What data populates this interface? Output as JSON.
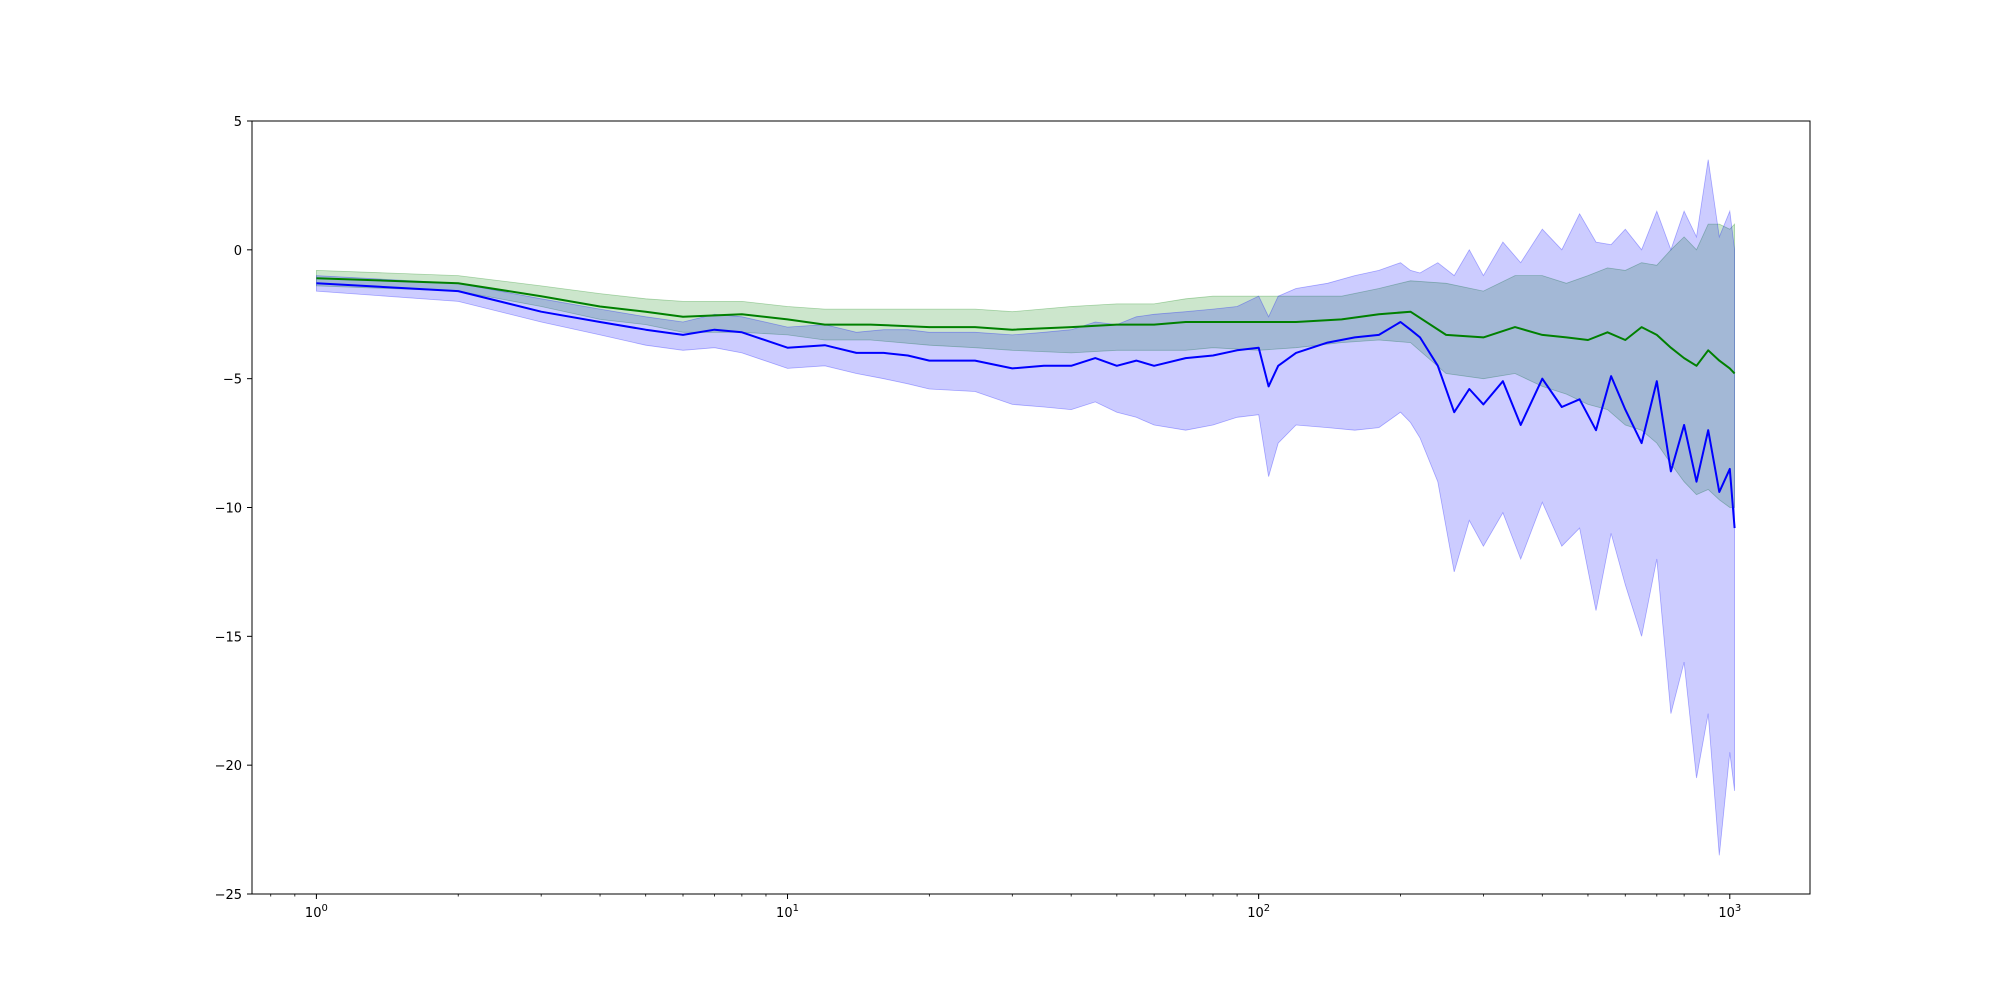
{
  "chart_data": {
    "type": "line",
    "title": "",
    "xlabel": "",
    "ylabel": "",
    "xscale": "log",
    "xlim": [
      0.73,
      1480
    ],
    "ylim": [
      -25,
      5
    ],
    "grid": false,
    "legend": null,
    "x_ticks": [
      {
        "value": 1,
        "base": "10",
        "exp": "0"
      },
      {
        "value": 10,
        "base": "10",
        "exp": "1"
      },
      {
        "value": 100,
        "base": "10",
        "exp": "2"
      },
      {
        "value": 1000,
        "base": "10",
        "exp": "3"
      }
    ],
    "y_ticks": [
      5,
      0,
      -5,
      -10,
      -15,
      -20,
      -25
    ],
    "y_tick_labels": [
      "5",
      "0",
      "−5",
      "−10",
      "−15",
      "−20",
      "−25"
    ],
    "colors": {
      "green_line": "#008000",
      "green_band": "#008000",
      "blue_line": "#0000ff",
      "blue_band": "#0000ff"
    },
    "series": [
      {
        "color": "green",
        "x": [
          1,
          2,
          3,
          4,
          5,
          6,
          8,
          10,
          12,
          15,
          20,
          25,
          30,
          40,
          50,
          60,
          70,
          80,
          100,
          120,
          150,
          180,
          210,
          250,
          300,
          350,
          400,
          450,
          500,
          550,
          600,
          650,
          700,
          750,
          800,
          850,
          900,
          950,
          1000,
          1024
        ],
        "y": [
          -1.1,
          -1.3,
          -1.8,
          -2.2,
          -2.4,
          -2.6,
          -2.5,
          -2.7,
          -2.9,
          -2.9,
          -3.0,
          -3.0,
          -3.1,
          -3.0,
          -2.9,
          -2.9,
          -2.8,
          -2.8,
          -2.8,
          -2.8,
          -2.7,
          -2.5,
          -2.4,
          -3.3,
          -3.4,
          -3.0,
          -3.3,
          -3.4,
          -3.5,
          -3.2,
          -3.5,
          -3.0,
          -3.3,
          -3.8,
          -4.2,
          -4.5,
          -3.9,
          -4.3,
          -4.6,
          -4.8
        ],
        "lower": [
          -1.4,
          -1.6,
          -2.2,
          -2.7,
          -2.9,
          -3.2,
          -3.2,
          -3.3,
          -3.5,
          -3.5,
          -3.7,
          -3.8,
          -3.9,
          -4.0,
          -3.9,
          -3.9,
          -3.9,
          -3.8,
          -3.9,
          -3.8,
          -3.6,
          -3.5,
          -3.6,
          -4.8,
          -5.0,
          -4.8,
          -5.3,
          -5.6,
          -6.0,
          -6.2,
          -6.8,
          -7.0,
          -7.5,
          -8.3,
          -9.0,
          -9.5,
          -9.3,
          -9.7,
          -10.0,
          -10.0
        ],
        "upper": [
          -0.8,
          -1.0,
          -1.4,
          -1.7,
          -1.9,
          -2.0,
          -2.0,
          -2.2,
          -2.3,
          -2.3,
          -2.3,
          -2.3,
          -2.4,
          -2.2,
          -2.1,
          -2.1,
          -1.9,
          -1.8,
          -1.8,
          -1.8,
          -1.8,
          -1.5,
          -1.2,
          -1.3,
          -1.6,
          -1.0,
          -1.0,
          -1.3,
          -1.0,
          -0.7,
          -0.8,
          -0.5,
          -0.6,
          0.0,
          0.5,
          0.0,
          1.0,
          1.0,
          0.8,
          1.0
        ]
      },
      {
        "color": "blue",
        "x": [
          1,
          2,
          3,
          4,
          5,
          6,
          7,
          8,
          10,
          12,
          14,
          16,
          18,
          20,
          25,
          30,
          35,
          40,
          45,
          50,
          55,
          60,
          70,
          80,
          90,
          100,
          105,
          110,
          120,
          140,
          160,
          180,
          200,
          210,
          220,
          240,
          260,
          280,
          300,
          330,
          360,
          400,
          440,
          480,
          520,
          560,
          600,
          650,
          700,
          750,
          800,
          850,
          900,
          950,
          1000,
          1024
        ],
        "y": [
          -1.3,
          -1.6,
          -2.4,
          -2.8,
          -3.1,
          -3.3,
          -3.1,
          -3.2,
          -3.8,
          -3.7,
          -4.0,
          -4.0,
          -4.1,
          -4.3,
          -4.3,
          -4.6,
          -4.5,
          -4.5,
          -4.2,
          -4.5,
          -4.3,
          -4.5,
          -4.2,
          -4.1,
          -3.9,
          -3.8,
          -5.3,
          -4.5,
          -4.0,
          -3.6,
          -3.4,
          -3.3,
          -2.8,
          -3.1,
          -3.4,
          -4.5,
          -6.3,
          -5.4,
          -6.0,
          -5.1,
          -6.8,
          -5.0,
          -6.1,
          -5.8,
          -7.0,
          -4.9,
          -6.2,
          -7.5,
          -5.1,
          -8.6,
          -6.8,
          -9.0,
          -7.0,
          -9.4,
          -8.5,
          -10.8
        ],
        "lower": [
          -1.6,
          -2.0,
          -2.8,
          -3.3,
          -3.7,
          -3.9,
          -3.8,
          -4.0,
          -4.6,
          -4.5,
          -4.8,
          -5.0,
          -5.2,
          -5.4,
          -5.5,
          -6.0,
          -6.1,
          -6.2,
          -5.9,
          -6.3,
          -6.5,
          -6.8,
          -7.0,
          -6.8,
          -6.5,
          -6.4,
          -8.8,
          -7.5,
          -6.8,
          -6.9,
          -7.0,
          -6.9,
          -6.3,
          -6.7,
          -7.3,
          -9.0,
          -12.5,
          -10.5,
          -11.5,
          -10.2,
          -12.0,
          -9.8,
          -11.5,
          -10.8,
          -14.0,
          -11.0,
          -13.0,
          -15.0,
          -12.0,
          -18.0,
          -16.0,
          -20.5,
          -18.0,
          -23.5,
          -19.5,
          -21.0
        ],
        "upper": [
          -1.0,
          -1.3,
          -1.9,
          -2.3,
          -2.6,
          -2.8,
          -2.5,
          -2.6,
          -3.0,
          -2.9,
          -3.2,
          -3.1,
          -3.1,
          -3.2,
          -3.2,
          -3.3,
          -3.2,
          -3.1,
          -2.8,
          -2.9,
          -2.6,
          -2.5,
          -2.4,
          -2.3,
          -2.2,
          -1.8,
          -2.6,
          -1.8,
          -1.5,
          -1.3,
          -1.0,
          -0.8,
          -0.5,
          -0.8,
          -0.9,
          -0.5,
          -1.0,
          0.0,
          -1.0,
          0.3,
          -0.5,
          0.8,
          0.0,
          1.4,
          0.3,
          0.2,
          0.8,
          0.0,
          1.5,
          0.0,
          1.5,
          0.5,
          3.5,
          0.5,
          1.5,
          0.0
        ]
      }
    ]
  }
}
